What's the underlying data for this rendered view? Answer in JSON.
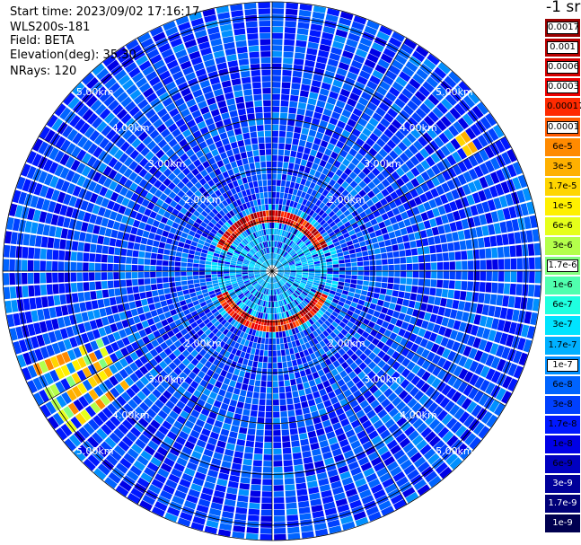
{
  "header": {
    "start_time": "Start time: 2023/09/02 17:16:17",
    "instrument": "WLS200s-181",
    "field": "Field: BETA",
    "elevation": "Elevation(deg): 35.30",
    "nrays": "NRays: 120"
  },
  "colorbar": {
    "unit": "-1 sr",
    "ticks": [
      "0.0017",
      "0.001",
      "0.0006",
      "0.0003",
      "0.00017",
      "0.0001",
      "6e-5",
      "3e-5",
      "1.7e-5",
      "1e-5",
      "6e-6",
      "3e-6",
      "1.7e-6",
      "1e-6",
      "6e-7",
      "3e-7",
      "1.7e-7",
      "1e-7",
      "6e-8",
      "3e-8",
      "1.7e-8",
      "1e-8",
      "6e-9",
      "3e-9",
      "1.7e-9",
      "1e-9"
    ],
    "colors": [
      "#9a0000",
      "#b80000",
      "#d40000",
      "#ee0000",
      "#ff2a00",
      "#ff5a00",
      "#ff8a00",
      "#ffb000",
      "#ffd500",
      "#fff000",
      "#e6ff1a",
      "#b4ff4b",
      "#82ff7d",
      "#50ffae",
      "#1fffe0",
      "#00e4ff",
      "#00b0ff",
      "#0090ff",
      "#0064ff",
      "#0040ff",
      "#0018ff",
      "#0000e6",
      "#0000c0",
      "#00009a",
      "#000078",
      "#000050"
    ]
  },
  "chart_data": {
    "type": "heatmap",
    "projection": "polar PPI scan",
    "rays": 120,
    "range_rings_km": [
      1,
      2,
      3,
      4,
      5
    ],
    "range_labels": [
      "2.00km",
      "3.00km",
      "4.00km",
      "5.00km"
    ],
    "max_range_km": 5.3,
    "colorscale": "log10 backscatter 1e-9 to 0.0017",
    "background_level": "3e-8",
    "features": [
      {
        "description": "high backscatter arc",
        "range_km": 1.1,
        "azimuth_deg": [
          295,
          65
        ],
        "value": "0.001"
      },
      {
        "description": "high backscatter arc",
        "range_km": 1.1,
        "azimuth_deg": [
          115,
          245
        ],
        "value": "0.001"
      }
    ]
  }
}
